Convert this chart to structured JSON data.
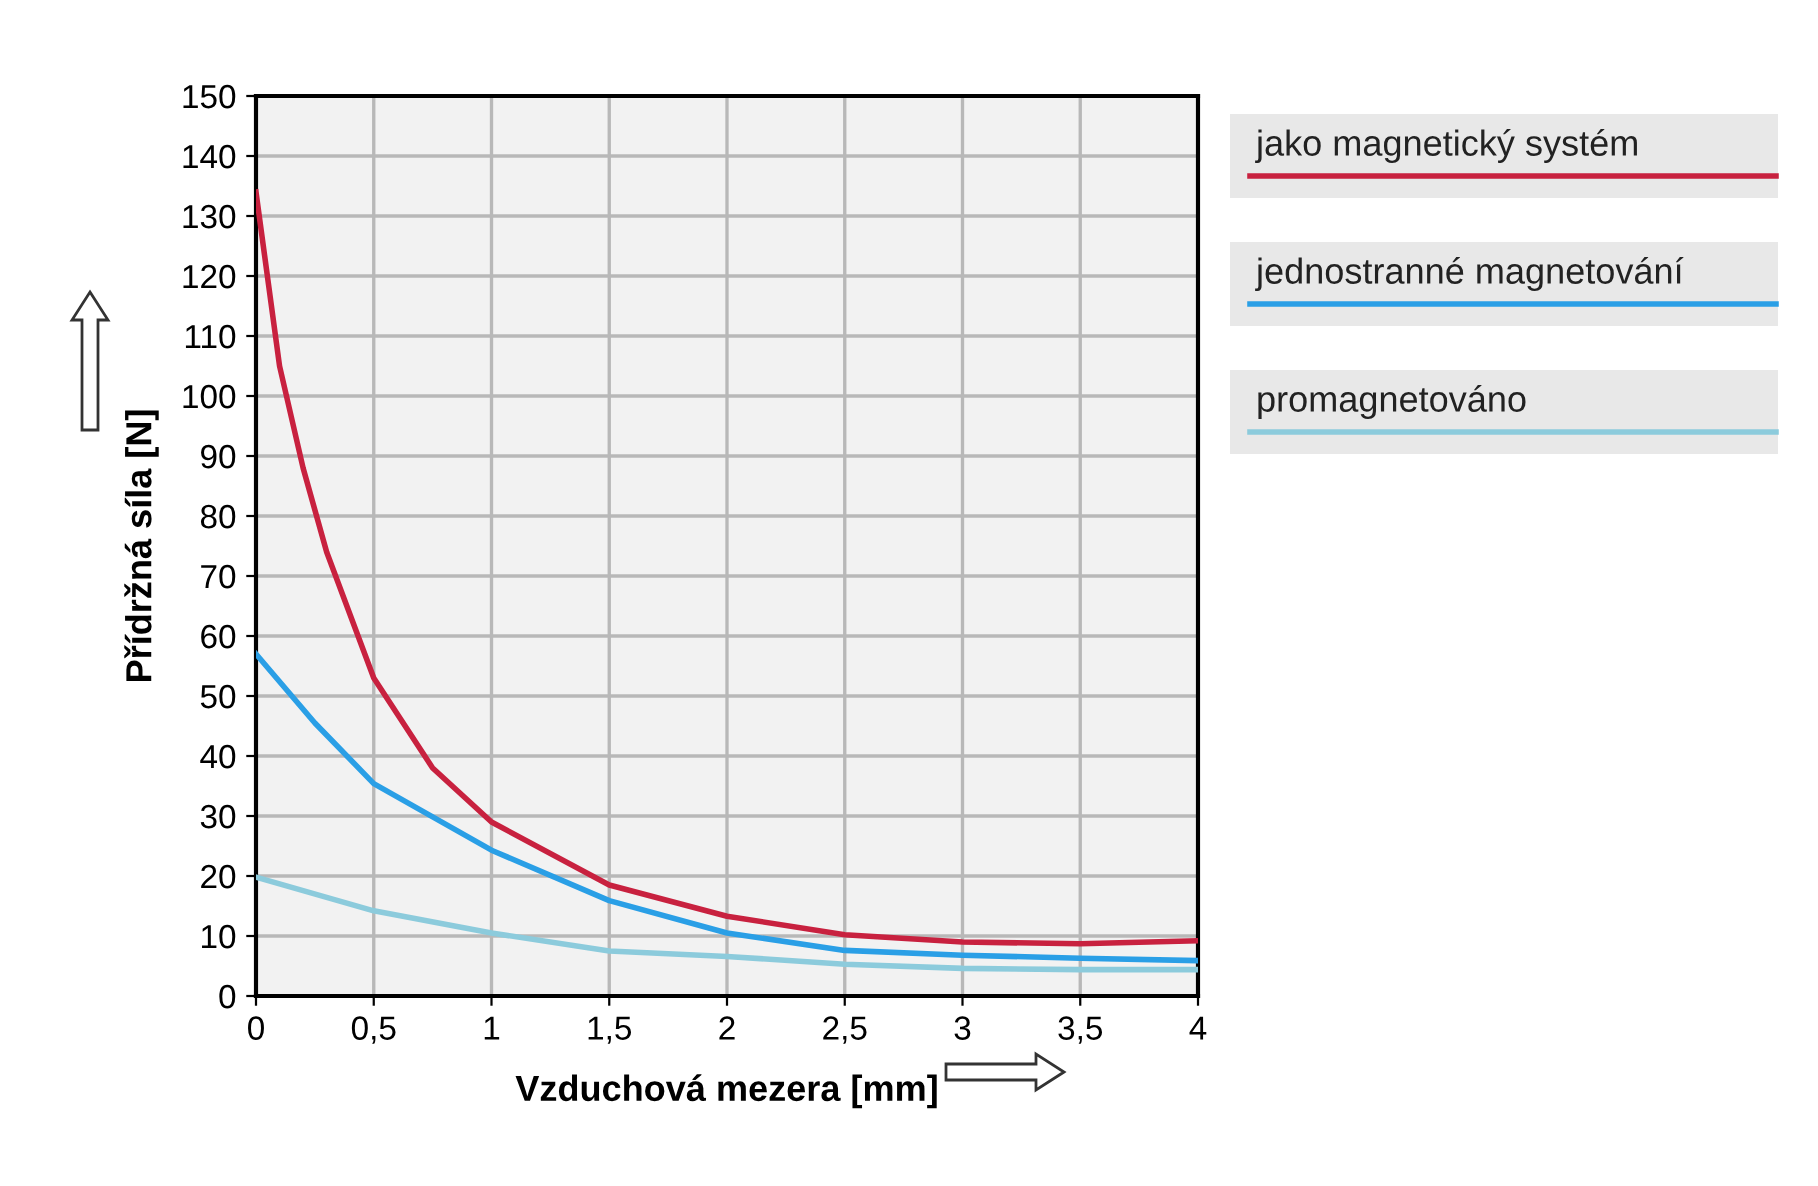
{
  "chart_data": {
    "type": "line",
    "xlabel": "Vzduchová mezera [mm]",
    "ylabel": "Přídržná síla [N]",
    "series": [
      {
        "name": "jako magnetický systém",
        "color": "#c8213f",
        "x": [
          0,
          0.1,
          0.2,
          0.3,
          0.5,
          0.75,
          1,
          1.5,
          2,
          2.5,
          3,
          3.5,
          4
        ],
        "values": [
          134,
          105,
          88,
          74,
          53,
          38,
          29,
          18.5,
          13.3,
          10.2,
          9.0,
          8.7,
          9.2
        ]
      },
      {
        "name": "jednostranné magnetování",
        "color": "#2a9fe6",
        "x": [
          0,
          0.25,
          0.5,
          1,
          1.5,
          2,
          2.5,
          3,
          3.5,
          4
        ],
        "values": [
          57,
          45.5,
          35.4,
          24.3,
          15.9,
          10.5,
          7.6,
          6.8,
          6.3,
          5.9
        ]
      },
      {
        "name": "promagnetováno",
        "color": "#8ccbdc",
        "x": [
          0,
          0.5,
          1,
          1.5,
          2,
          2.5,
          3,
          3.5,
          4
        ],
        "values": [
          19.8,
          14.2,
          10.5,
          7.5,
          6.6,
          5.3,
          4.6,
          4.4,
          4.4
        ]
      }
    ],
    "xlim": [
      0,
      4
    ],
    "ylim": [
      0,
      150
    ],
    "xticks": [
      0,
      {
        "value": 0.5,
        "label": "0,5"
      },
      1,
      {
        "value": 1.5,
        "label": "1,5"
      },
      2,
      {
        "value": 2.5,
        "label": "2,5"
      },
      3,
      {
        "value": 3.5,
        "label": "3,5"
      },
      4
    ],
    "yticks": [
      0,
      10,
      20,
      30,
      40,
      50,
      60,
      70,
      80,
      90,
      100,
      110,
      120,
      130,
      140,
      150
    ],
    "grid": true,
    "legend": "right",
    "marker": "none",
    "line_style": "solid"
  }
}
